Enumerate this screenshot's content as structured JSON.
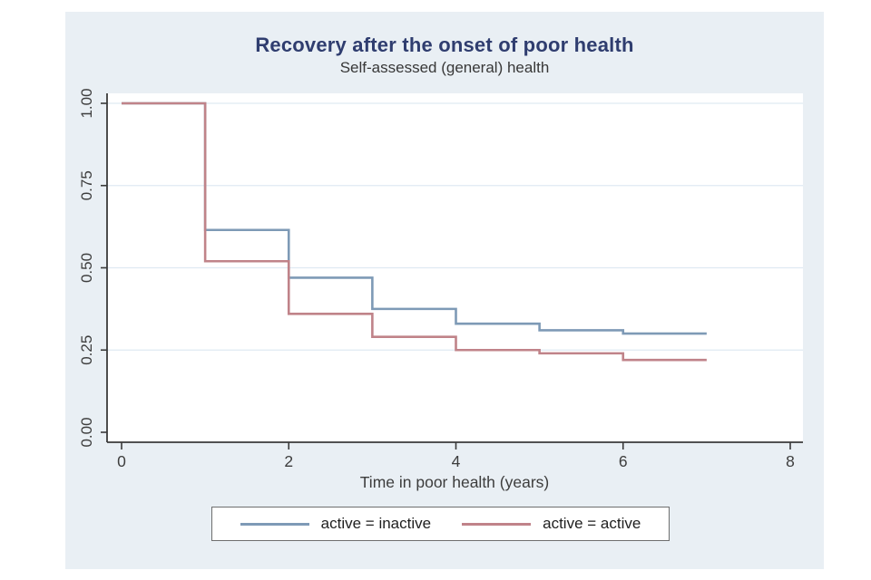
{
  "window": {
    "background": "#ffffff",
    "region_background": "#e9eff4"
  },
  "colors": {
    "title": "#2f3d6f",
    "subtitle": "#383838",
    "axis_line": "#3a3a3a",
    "tick_label": "#3d3d3d",
    "grid_line": "#dfeaf2",
    "plot_background": "#ffffff",
    "legend_border": "#6e6e6e",
    "series_inactive": "#7e9ab6",
    "series_active": "#c08389"
  },
  "chart_data": {
    "type": "line",
    "subtype": "kaplan-meier-step",
    "title": "Recovery after the onset of poor health",
    "subtitle": "Self-assessed (general) health",
    "xlabel": "Time in poor health (years)",
    "ylabel": "",
    "xlim": [
      0,
      8
    ],
    "ylim": [
      0,
      1
    ],
    "xticks": [
      0,
      2,
      4,
      6,
      8
    ],
    "yticks": [
      {
        "value": 0.0,
        "label": "0.00"
      },
      {
        "value": 0.25,
        "label": "0.25"
      },
      {
        "value": 0.5,
        "label": "0.50"
      },
      {
        "value": 0.75,
        "label": "0.75"
      },
      {
        "value": 1.0,
        "label": "1.00"
      }
    ],
    "grid": "horizontal-at-yticks-above-zero",
    "legend_position": "bottom-center-boxed",
    "series": [
      {
        "name": "active = inactive",
        "color": "#7e9ab6",
        "steps": {
          "x": [
            0,
            1,
            2,
            3,
            4,
            5,
            6
          ],
          "y": [
            1.0,
            0.615,
            0.47,
            0.375,
            0.33,
            0.31,
            0.3
          ],
          "end_x": 7
        }
      },
      {
        "name": "active = active",
        "color": "#c08389",
        "steps": {
          "x": [
            0,
            1,
            2,
            3,
            4,
            5,
            6
          ],
          "y": [
            1.0,
            0.52,
            0.36,
            0.29,
            0.25,
            0.24,
            0.22
          ],
          "end_x": 7
        }
      }
    ]
  }
}
